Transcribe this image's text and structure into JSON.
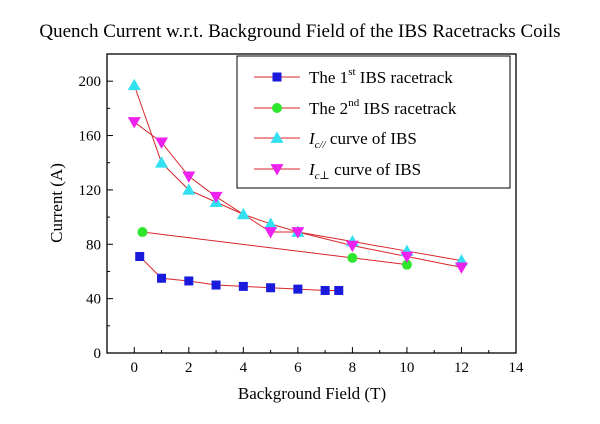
{
  "chart_data": {
    "type": "scatter",
    "title": "Quench Current w.r.t. Background Field of the IBS Racetracks Coils",
    "xlabel": "Background Field (T)",
    "ylabel": "Current (A)",
    "xlim": [
      -1,
      14
    ],
    "ylim": [
      0,
      220
    ],
    "xticks": [
      0,
      2,
      4,
      6,
      8,
      10,
      12,
      14
    ],
    "yticks": [
      0,
      40,
      80,
      120,
      160,
      200
    ],
    "grid": false,
    "legend_position": "top-right",
    "series": [
      {
        "name": "The 1st IBS racetrack",
        "legend": {
          "pre": "The 1",
          "sup": "st",
          "post": " IBS racetrack"
        },
        "marker": "square",
        "color": "#1a1adc",
        "line_color": "#d9262b",
        "points": [
          [
            0.2,
            71
          ],
          [
            1,
            55
          ],
          [
            2,
            53
          ],
          [
            3,
            50
          ],
          [
            4,
            49
          ],
          [
            5,
            48
          ],
          [
            6,
            47
          ],
          [
            7,
            46
          ],
          [
            7.5,
            46
          ]
        ]
      },
      {
        "name": "The 2nd IBS racetrack",
        "legend": {
          "pre": "The 2",
          "sup": "nd",
          "post": " IBS racetrack"
        },
        "marker": "circle",
        "color": "#2ee62e",
        "line_color": "#d9262b",
        "points": [
          [
            0.3,
            89
          ],
          [
            8,
            70
          ],
          [
            10,
            65
          ]
        ]
      },
      {
        "name": "Ic// curve of IBS",
        "legend": {
          "pre": "I",
          "sub": "c//",
          "post": " curve of IBS"
        },
        "marker": "triangle-up",
        "color": "#33e0f0",
        "line_color": "#d9262b",
        "points": [
          [
            0,
            197
          ],
          [
            1,
            140
          ],
          [
            2,
            120
          ],
          [
            3,
            111
          ],
          [
            4,
            102
          ],
          [
            5,
            95
          ],
          [
            6,
            89
          ],
          [
            8,
            82
          ],
          [
            10,
            75
          ],
          [
            12,
            68
          ]
        ]
      },
      {
        "name": "Ic⊥ curve of IBS",
        "legend": {
          "pre": "I",
          "sub": "c⊥",
          "post": " curve of IBS"
        },
        "marker": "triangle-down",
        "color": "#ee22ee",
        "line_color": "#d9262b",
        "points": [
          [
            0,
            170
          ],
          [
            1,
            155
          ],
          [
            2,
            130
          ],
          [
            3,
            115
          ],
          [
            5,
            89
          ],
          [
            6,
            89
          ],
          [
            8,
            79
          ],
          [
            10,
            71
          ],
          [
            12,
            63
          ]
        ]
      }
    ]
  }
}
